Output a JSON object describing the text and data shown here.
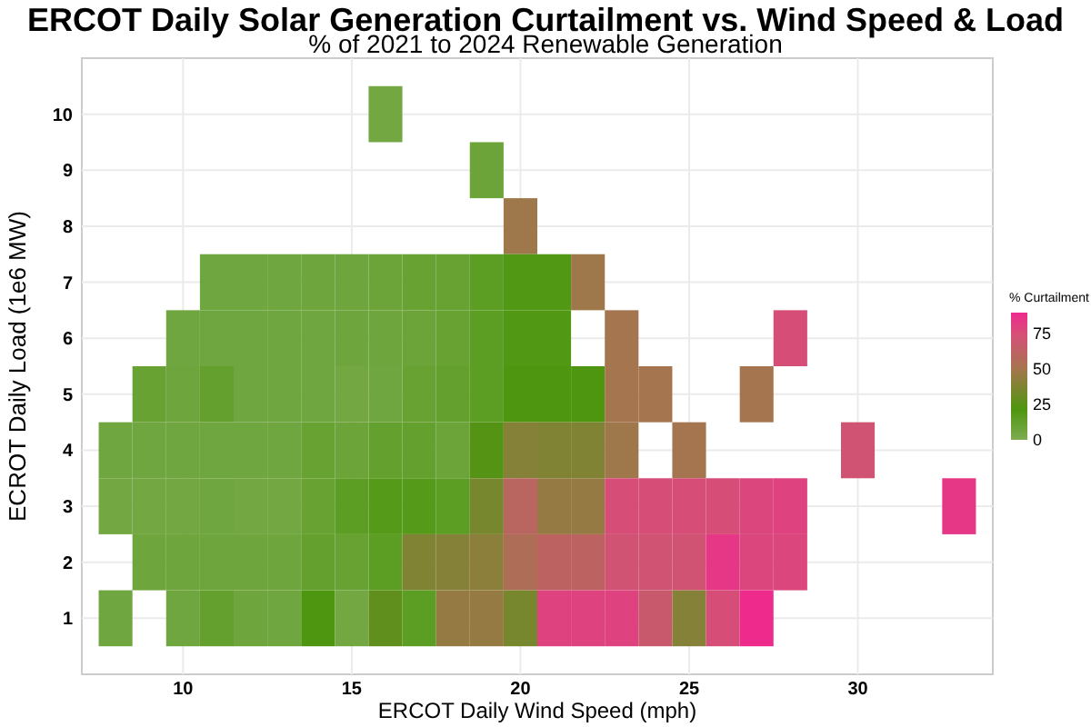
{
  "chart_data": {
    "type": "heatmap",
    "title": "ERCOT Daily Solar Generation Curtailment vs. Wind Speed & Load",
    "subtitle": "% of 2021 to 2024 Renewable Generation",
    "xlabel": "ERCOT Daily Wind Speed (mph)",
    "ylabel": "ECROT Daily Load (1e6 MW)",
    "clabel": "% Curtailment",
    "categories": [
      null,
      null,
      "10",
      null,
      null,
      null,
      null,
      "15",
      null,
      null,
      null,
      null,
      "20",
      null,
      null,
      null,
      null,
      "25",
      null,
      null,
      null,
      null,
      "30",
      null,
      null,
      null
    ],
    "y_categories": [
      "10",
      "9",
      "8",
      "7",
      "6",
      "5",
      "4",
      "3",
      "2",
      "1"
    ],
    "cells": [
      [
        null,
        null,
        null,
        null,
        null,
        null,
        null,
        null,
        5,
        null,
        null,
        null,
        null,
        null,
        null,
        null,
        null,
        null,
        null,
        null,
        null,
        null,
        null,
        null,
        null,
        null
      ],
      [
        null,
        null,
        null,
        null,
        null,
        null,
        null,
        null,
        null,
        null,
        null,
        8,
        null,
        null,
        null,
        null,
        null,
        null,
        null,
        null,
        null,
        null,
        null,
        null,
        null,
        null
      ],
      [
        null,
        null,
        null,
        null,
        null,
        null,
        null,
        null,
        null,
        null,
        null,
        null,
        48,
        null,
        null,
        null,
        null,
        null,
        null,
        null,
        null,
        null,
        null,
        null,
        null,
        null
      ],
      [
        null,
        null,
        null,
        6,
        6,
        6,
        7,
        7,
        8,
        10,
        10,
        15,
        20,
        20,
        48,
        null,
        null,
        null,
        null,
        null,
        null,
        null,
        null,
        null,
        null,
        null
      ],
      [
        null,
        null,
        6,
        6,
        6,
        6,
        6,
        7,
        7,
        8,
        10,
        15,
        20,
        20,
        null,
        50,
        null,
        null,
        null,
        null,
        75,
        null,
        null,
        null,
        null,
        null
      ],
      [
        null,
        10,
        7,
        12,
        6,
        6,
        6,
        5,
        6,
        10,
        12,
        15,
        22,
        22,
        22,
        50,
        50,
        null,
        null,
        50,
        null,
        null,
        null,
        null,
        null,
        null
      ],
      [
        6,
        6,
        6,
        6,
        6,
        6,
        10,
        8,
        12,
        12,
        8,
        24,
        40,
        38,
        38,
        48,
        null,
        50,
        null,
        null,
        null,
        null,
        72,
        null,
        null,
        null
      ],
      [
        5,
        5,
        5,
        6,
        5,
        5,
        10,
        15,
        18,
        18,
        15,
        35,
        60,
        45,
        45,
        75,
        75,
        75,
        75,
        78,
        80,
        null,
        null,
        null,
        null,
        85
      ],
      [
        null,
        7,
        7,
        7,
        7,
        7,
        12,
        10,
        15,
        38,
        40,
        42,
        55,
        62,
        62,
        72,
        72,
        72,
        85,
        78,
        78,
        null,
        null,
        null,
        null,
        null
      ],
      [
        6,
        null,
        6,
        12,
        7,
        6,
        22,
        5,
        28,
        15,
        45,
        45,
        35,
        80,
        80,
        80,
        68,
        40,
        75,
        90,
        null,
        null,
        null,
        null,
        null,
        null
      ]
    ],
    "clim": [
      0,
      90
    ],
    "cticks": [
      0,
      25,
      50,
      75
    ],
    "grid": true
  }
}
